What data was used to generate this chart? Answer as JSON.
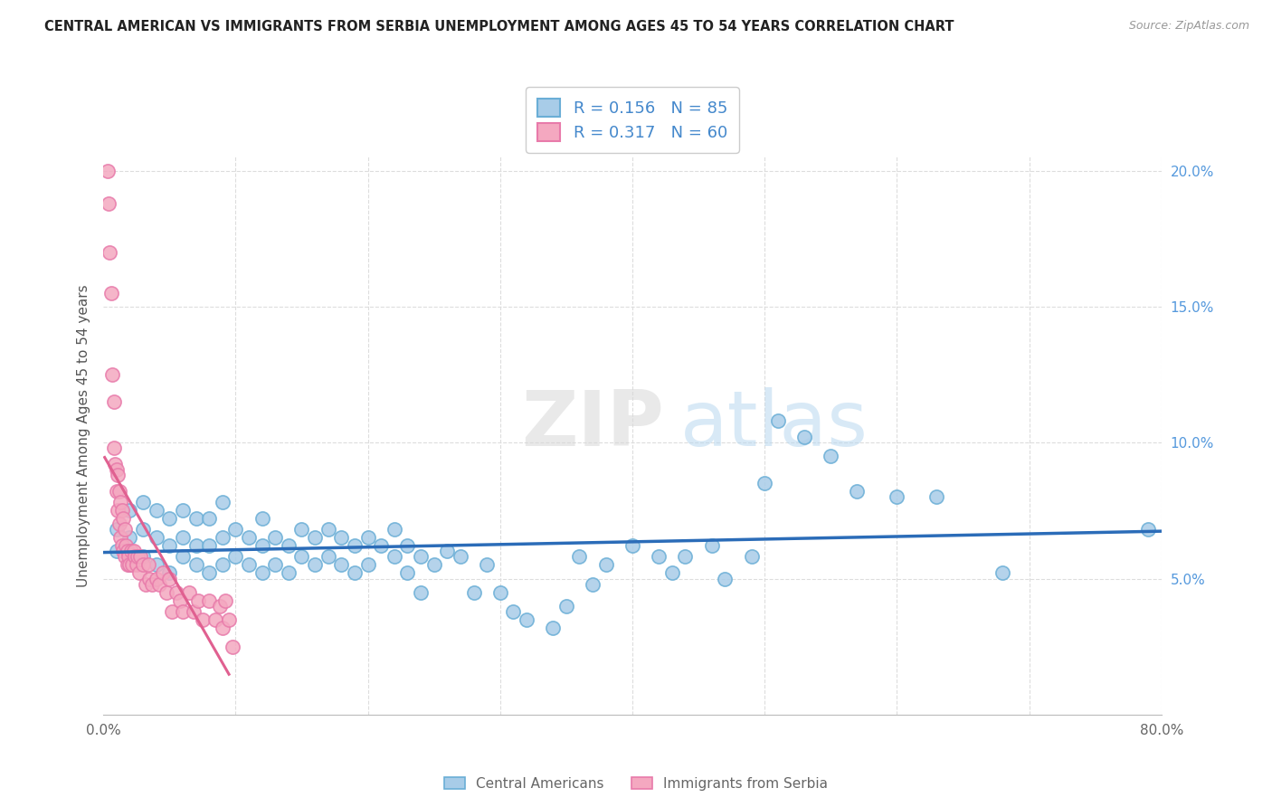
{
  "title": "CENTRAL AMERICAN VS IMMIGRANTS FROM SERBIA UNEMPLOYMENT AMONG AGES 45 TO 54 YEARS CORRELATION CHART",
  "source": "Source: ZipAtlas.com",
  "ylabel": "Unemployment Among Ages 45 to 54 years",
  "xlim": [
    0.0,
    0.8
  ],
  "ylim": [
    0.0,
    0.205
  ],
  "xtick_positions": [
    0.0,
    0.1,
    0.2,
    0.3,
    0.4,
    0.5,
    0.6,
    0.7,
    0.8
  ],
  "xticklabels": [
    "0.0%",
    "",
    "",
    "",
    "",
    "",
    "",
    "",
    "80.0%"
  ],
  "yticks_right": [
    0.0,
    0.05,
    0.1,
    0.15,
    0.2
  ],
  "yticklabels_right": [
    "",
    "5.0%",
    "10.0%",
    "15.0%",
    "20.0%"
  ],
  "blue_color": "#a8cce8",
  "pink_color": "#f4a8c0",
  "blue_edge_color": "#6aaed6",
  "pink_edge_color": "#e87aaa",
  "blue_line_color": "#2b6cb8",
  "pink_line_color": "#e06090",
  "pink_dash_color": "#e8a0b8",
  "legend_label_blue": "R = 0.156   N = 85",
  "legend_label_pink": "R = 0.317   N = 60",
  "watermark_zip": "ZIP",
  "watermark_atlas": "atlas",
  "blue_scatter_x": [
    0.01,
    0.01,
    0.02,
    0.02,
    0.02,
    0.03,
    0.03,
    0.03,
    0.04,
    0.04,
    0.04,
    0.05,
    0.05,
    0.05,
    0.06,
    0.06,
    0.06,
    0.07,
    0.07,
    0.07,
    0.08,
    0.08,
    0.08,
    0.09,
    0.09,
    0.09,
    0.1,
    0.1,
    0.11,
    0.11,
    0.12,
    0.12,
    0.12,
    0.13,
    0.13,
    0.14,
    0.14,
    0.15,
    0.15,
    0.16,
    0.16,
    0.17,
    0.17,
    0.18,
    0.18,
    0.19,
    0.19,
    0.2,
    0.2,
    0.21,
    0.22,
    0.22,
    0.23,
    0.23,
    0.24,
    0.24,
    0.25,
    0.26,
    0.27,
    0.28,
    0.29,
    0.3,
    0.31,
    0.32,
    0.34,
    0.35,
    0.36,
    0.37,
    0.38,
    0.4,
    0.42,
    0.43,
    0.44,
    0.46,
    0.47,
    0.49,
    0.5,
    0.51,
    0.53,
    0.55,
    0.57,
    0.6,
    0.63,
    0.68,
    0.79
  ],
  "blue_scatter_y": [
    0.06,
    0.068,
    0.055,
    0.065,
    0.075,
    0.058,
    0.068,
    0.078,
    0.055,
    0.065,
    0.075,
    0.052,
    0.062,
    0.072,
    0.058,
    0.065,
    0.075,
    0.055,
    0.062,
    0.072,
    0.052,
    0.062,
    0.072,
    0.055,
    0.065,
    0.078,
    0.058,
    0.068,
    0.055,
    0.065,
    0.052,
    0.062,
    0.072,
    0.055,
    0.065,
    0.052,
    0.062,
    0.058,
    0.068,
    0.055,
    0.065,
    0.058,
    0.068,
    0.055,
    0.065,
    0.052,
    0.062,
    0.055,
    0.065,
    0.062,
    0.058,
    0.068,
    0.052,
    0.062,
    0.045,
    0.058,
    0.055,
    0.06,
    0.058,
    0.045,
    0.055,
    0.045,
    0.038,
    0.035,
    0.032,
    0.04,
    0.058,
    0.048,
    0.055,
    0.062,
    0.058,
    0.052,
    0.058,
    0.062,
    0.05,
    0.058,
    0.085,
    0.108,
    0.102,
    0.095,
    0.082,
    0.08,
    0.08,
    0.052,
    0.068
  ],
  "pink_scatter_x": [
    0.003,
    0.004,
    0.005,
    0.006,
    0.007,
    0.008,
    0.008,
    0.009,
    0.01,
    0.01,
    0.011,
    0.011,
    0.012,
    0.012,
    0.013,
    0.013,
    0.014,
    0.014,
    0.015,
    0.015,
    0.016,
    0.016,
    0.017,
    0.018,
    0.018,
    0.019,
    0.02,
    0.021,
    0.022,
    0.023,
    0.024,
    0.025,
    0.026,
    0.027,
    0.028,
    0.03,
    0.032,
    0.034,
    0.035,
    0.037,
    0.04,
    0.042,
    0.045,
    0.048,
    0.05,
    0.052,
    0.055,
    0.058,
    0.06,
    0.065,
    0.068,
    0.072,
    0.075,
    0.08,
    0.085,
    0.088,
    0.09,
    0.092,
    0.095,
    0.098
  ],
  "pink_scatter_y": [
    0.2,
    0.188,
    0.17,
    0.155,
    0.125,
    0.115,
    0.098,
    0.092,
    0.09,
    0.082,
    0.088,
    0.075,
    0.082,
    0.07,
    0.078,
    0.065,
    0.075,
    0.062,
    0.072,
    0.06,
    0.068,
    0.058,
    0.062,
    0.06,
    0.055,
    0.058,
    0.055,
    0.06,
    0.055,
    0.06,
    0.058,
    0.055,
    0.058,
    0.052,
    0.058,
    0.055,
    0.048,
    0.055,
    0.05,
    0.048,
    0.05,
    0.048,
    0.052,
    0.045,
    0.05,
    0.038,
    0.045,
    0.042,
    0.038,
    0.045,
    0.038,
    0.042,
    0.035,
    0.042,
    0.035,
    0.04,
    0.032,
    0.042,
    0.035,
    0.025
  ]
}
